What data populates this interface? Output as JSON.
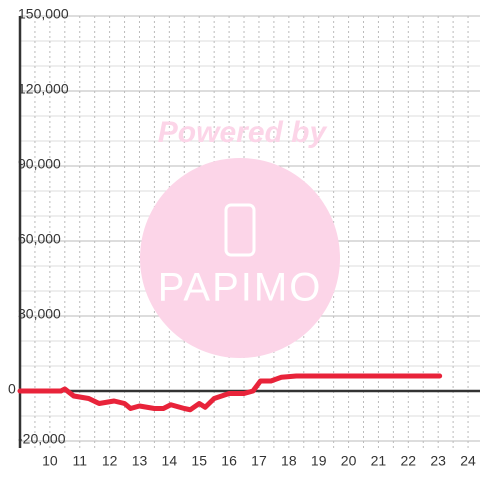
{
  "chart_data": {
    "type": "line",
    "watermark": {
      "top": "Powered by",
      "brand": "PAPIMO"
    },
    "x": [
      9.0,
      10.37,
      10.5,
      10.8,
      11.3,
      11.65,
      12.15,
      12.5,
      12.7,
      13.0,
      13.5,
      13.8,
      14.05,
      14.5,
      14.7,
      15.0,
      15.2,
      15.5,
      16.0,
      16.5,
      16.8,
      17.05,
      17.4,
      17.75,
      18.25,
      23.05
    ],
    "series": [
      {
        "color": "#e8233a",
        "values": [
          0,
          0,
          800,
          -2000,
          -3000,
          -5000,
          -4000,
          -5000,
          -7000,
          -6000,
          -7000,
          -7000,
          -5500,
          -7000,
          -7500,
          -5000,
          -6500,
          -3000,
          -1000,
          -1000,
          0,
          4000,
          4000,
          5500,
          6000,
          6000
        ]
      }
    ],
    "xlim": [
      9,
      24.4
    ],
    "xticks": [
      10,
      11,
      12,
      13,
      14,
      15,
      16,
      17,
      18,
      19,
      20,
      21,
      22,
      23,
      24
    ],
    "xgrid": [
      9.5,
      10,
      10.5,
      11,
      11.5,
      12,
      12.5,
      13,
      13.5,
      14,
      14.5,
      15,
      15.5,
      16,
      16.5,
      17,
      17.5,
      18,
      18.5,
      19,
      19.5,
      20,
      20.5,
      21,
      21.5,
      22,
      22.5,
      23,
      23.5,
      24
    ],
    "ylim": [
      -20000,
      150000
    ],
    "yticks": [
      {
        "value": -20000,
        "label": "-20,000"
      },
      0,
      {
        "value": 30000,
        "label": "30,000"
      },
      {
        "value": 60000,
        "label": "60,000"
      },
      {
        "value": 90000,
        "label": "90,000"
      },
      {
        "value": 120000,
        "label": "120,000"
      },
      {
        "value": 150000,
        "label": "150,000"
      }
    ],
    "ygrid": [
      -10000,
      10000,
      20000,
      40000,
      50000,
      70000,
      80000,
      100000,
      110000,
      130000,
      140000
    ],
    "grid": true
  }
}
